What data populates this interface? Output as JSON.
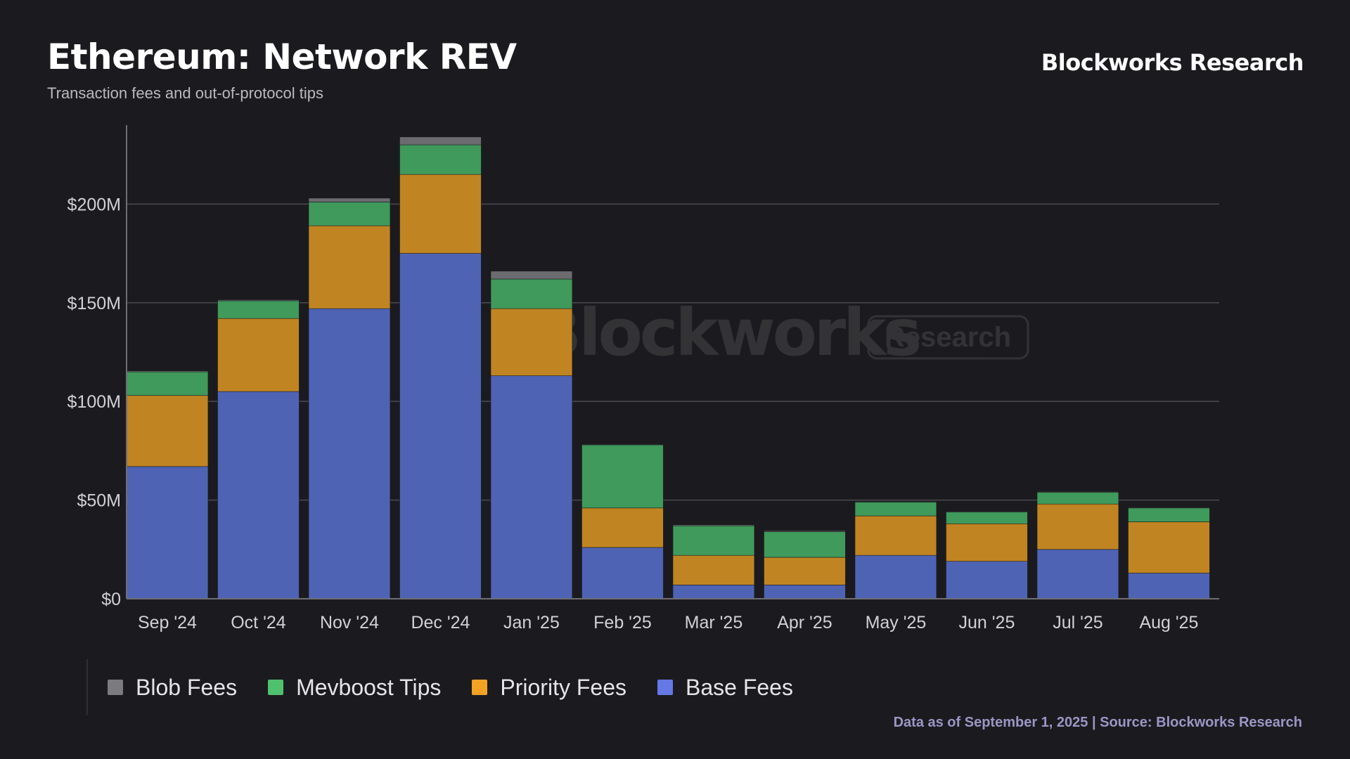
{
  "header": {
    "title": "Ethereum: Network REV",
    "subtitle": "Transaction fees and out-of-protocol tips",
    "brand": "Blockworks Research"
  },
  "watermark": {
    "word": "Blockworks",
    "badge": "Research"
  },
  "footer": {
    "source": "Data as of September 1, 2025 | Source: Blockworks Research"
  },
  "chart_data": {
    "type": "bar",
    "stacked": true,
    "title": "Ethereum: Network REV",
    "subtitle": "Transaction fees and out-of-protocol tips",
    "xlabel": "",
    "ylabel": "",
    "ylim": [
      0,
      240
    ],
    "yticks": [
      0,
      50,
      100,
      150,
      200
    ],
    "ytick_labels": [
      "$0",
      "$50M",
      "$100M",
      "$150M",
      "$200M"
    ],
    "grid": true,
    "legend_position": "bottom-left",
    "categories": [
      "Sep '24",
      "Oct '24",
      "Nov '24",
      "Dec '24",
      "Jan '25",
      "Feb '25",
      "Mar '25",
      "Apr '25",
      "May '25",
      "Jun '25",
      "Jul '25",
      "Aug '25"
    ],
    "series": [
      {
        "name": "Base Fees",
        "color": "#4f63b5",
        "values": [
          67,
          105,
          147,
          175,
          113,
          26,
          7,
          7,
          22,
          19,
          25,
          13
        ]
      },
      {
        "name": "Priority Fees",
        "color": "#c08522",
        "values": [
          36,
          37,
          42,
          40,
          34,
          20,
          15,
          14,
          20,
          19,
          23,
          26
        ]
      },
      {
        "name": "Mevboost Tips",
        "color": "#3f9a5b",
        "values": [
          12,
          9,
          12,
          15,
          15,
          32,
          15,
          13,
          7,
          6,
          6,
          7
        ]
      },
      {
        "name": "Blob Fees",
        "color": "#6b6b70",
        "values": [
          0.5,
          0.5,
          2,
          4,
          4,
          0.3,
          0.5,
          0.5,
          0.3,
          0.3,
          0.3,
          0.3
        ]
      }
    ],
    "legend_order": [
      "Blob Fees",
      "Mevboost Tips",
      "Priority Fees",
      "Base Fees"
    ],
    "legend_swatch_colors": {
      "Blob Fees": "#7c7c80",
      "Mevboost Tips": "#4fc06e",
      "Priority Fees": "#f2a224",
      "Base Fees": "#6379e6"
    }
  }
}
